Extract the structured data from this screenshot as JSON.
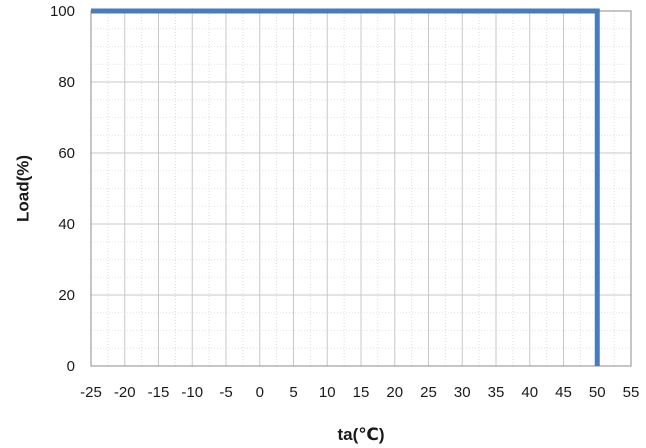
{
  "chart_data": {
    "type": "line",
    "title": "",
    "xlabel": "ta(℃)",
    "ylabel": "Load(%)",
    "xlim": [
      -25,
      55
    ],
    "ylim": [
      0,
      100
    ],
    "x_ticks": [
      -25,
      -20,
      -15,
      -10,
      -5,
      0,
      5,
      10,
      15,
      20,
      25,
      30,
      35,
      40,
      45,
      50,
      55
    ],
    "x_tick_labels": [
      "-25",
      "-20",
      "-15",
      "-10",
      "-5",
      "0",
      "5",
      "10",
      "15",
      "20",
      "25",
      "30",
      "35",
      "40",
      "45",
      "50",
      "55"
    ],
    "y_ticks": [
      0,
      20,
      40,
      60,
      80,
      100
    ],
    "y_tick_labels": [
      "0",
      "20",
      "40",
      "60",
      "80",
      "100"
    ],
    "grid": true,
    "legend": "none",
    "series": [
      {
        "color": "#4a7bbf",
        "x": [
          -25,
          50,
          50
        ],
        "y": [
          100,
          100,
          0
        ]
      }
    ]
  }
}
